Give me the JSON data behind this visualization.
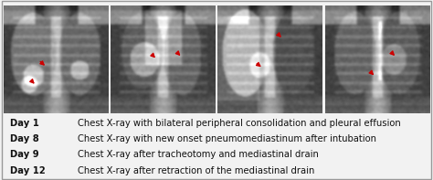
{
  "panel_bg": "#f2f2f2",
  "border_color": "#999999",
  "legend_entries": [
    {
      "day": "Day 1",
      "text": "Chest X-ray with bilateral peripheral consolidation and pleural effusion"
    },
    {
      "day": "Day 8",
      "text": "Chest X-ray with new onset pneumomediastinum after intubation"
    },
    {
      "day": "Day 9",
      "text": "Chest X-ray after tracheotomy and mediastinal drain"
    },
    {
      "day": "Day 12",
      "text": "Chest X-ray after retraction of the mediastinal drain"
    }
  ],
  "n_images": 4,
  "arrow_color": "#cc0000",
  "label_fontsize": 7.2,
  "font_family": "DejaVu Sans",
  "arrow_positions": [
    [
      [
        0.33,
        0.5,
        0.41,
        0.57
      ],
      [
        0.25,
        0.68,
        0.31,
        0.74
      ]
    ],
    [
      [
        0.38,
        0.44,
        0.44,
        0.5
      ],
      [
        0.62,
        0.42,
        0.68,
        0.48
      ]
    ],
    [
      [
        0.56,
        0.25,
        0.62,
        0.31
      ],
      [
        0.35,
        0.52,
        0.43,
        0.58
      ]
    ],
    [
      [
        0.62,
        0.42,
        0.68,
        0.48
      ],
      [
        0.42,
        0.6,
        0.48,
        0.66
      ]
    ]
  ]
}
